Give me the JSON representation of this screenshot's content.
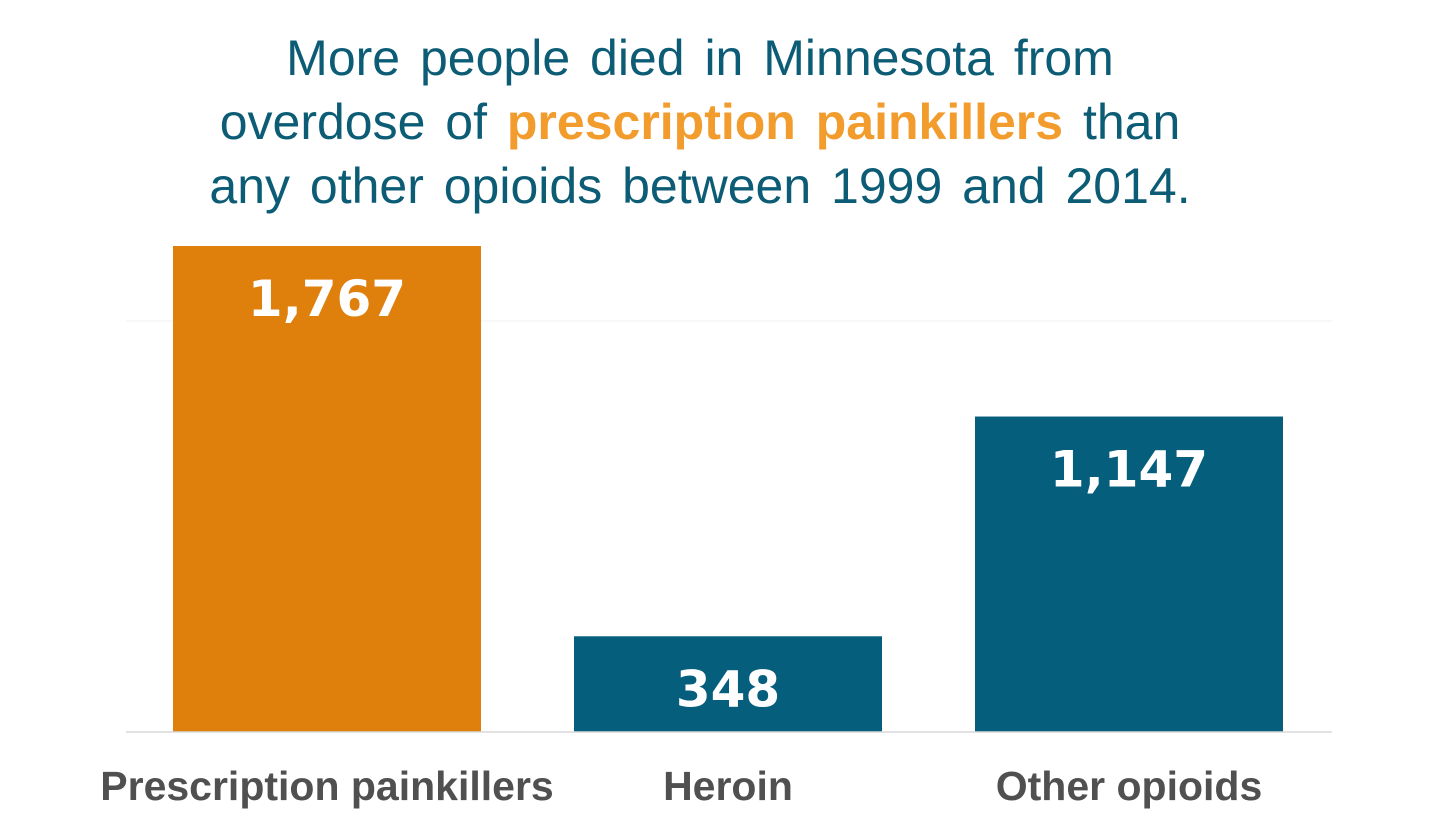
{
  "title": {
    "line1": "More people died in Minnesota from",
    "line2_before": "overdose of ",
    "line2_highlight": "prescription painkillers",
    "line2_after": " than",
    "line3": "any other opioids between 1999 and 2014."
  },
  "colors": {
    "title": "#0d5c76",
    "highlight": "#f29c2e",
    "bar_highlight": "#df7f0c",
    "bar_default": "#055e7c",
    "label": "#505050",
    "axis": "#d9d9d9"
  },
  "chart_data": {
    "type": "bar",
    "title": "More people died in Minnesota from overdose of prescription painkillers than any other opioids between 1999 and 2014.",
    "categories": [
      "Prescription painkillers",
      "Heroin",
      "Other opioids"
    ],
    "values": [
      1767,
      348,
      1147
    ],
    "value_labels": [
      "1,767",
      "348",
      "1,147"
    ],
    "highlight_index": 0,
    "xlabel": "",
    "ylabel": "",
    "ylim": [
      0,
      1767
    ],
    "grid": true
  }
}
